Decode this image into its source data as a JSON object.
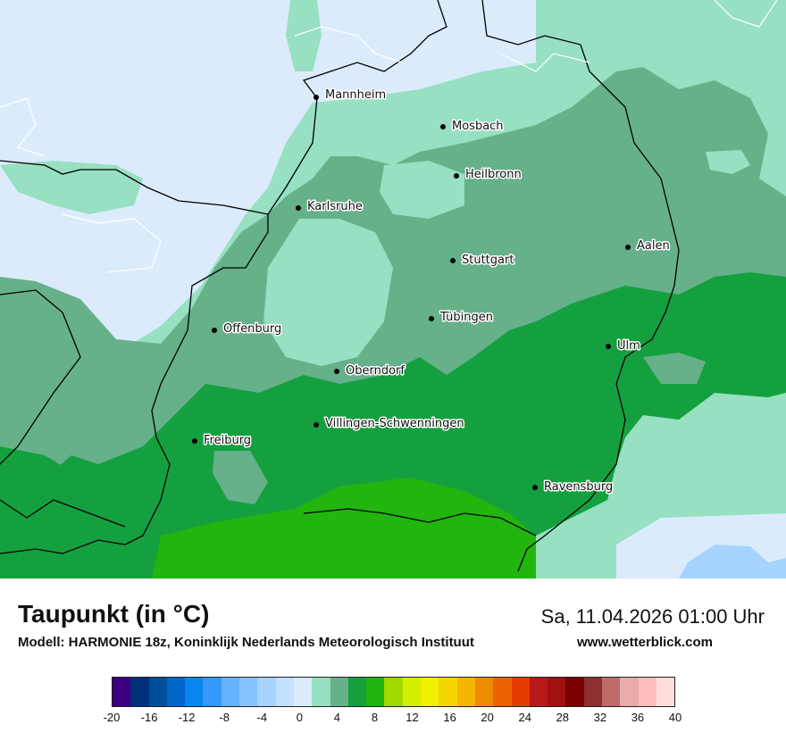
{
  "map": {
    "cities": [
      {
        "name": "Mannheim"
      },
      {
        "name": "Mosbach"
      },
      {
        "name": "Heilbronn"
      },
      {
        "name": "Karlsruhe"
      },
      {
        "name": "Aalen"
      },
      {
        "name": "Stuttgart"
      },
      {
        "name": "Tübingen"
      },
      {
        "name": "Offenburg"
      },
      {
        "name": "Ulm"
      },
      {
        "name": "Oberndorf"
      },
      {
        "name": "Villingen-Schwenningen"
      },
      {
        "name": "Freiburg"
      },
      {
        "name": "Ravensburg"
      }
    ]
  },
  "footer": {
    "title": "Taupunkt (in °C)",
    "subtitle": "Modell: HARMONIE 18z, Koninklijk Nederlands Meteorologisch Instituut",
    "datetime": "Sa, 11.04.2026 01:00 Uhr",
    "website": "www.wetterblick.com"
  },
  "legend": {
    "colors": [
      "#3b007f",
      "#00307a",
      "#004d99",
      "#0066cc",
      "#0a85ee",
      "#3399ff",
      "#66b2ff",
      "#85c2ff",
      "#a6d3ff",
      "#c4e0ff",
      "#dcebfc",
      "#97e0c1",
      "#66b08a",
      "#15a040",
      "#21b50d",
      "#a0d800",
      "#d4ee00",
      "#f0f000",
      "#f5d500",
      "#f3b600",
      "#f08a00",
      "#ed6200",
      "#e63b00",
      "#b71919",
      "#a10f0f",
      "#7a0000",
      "#8c3030",
      "#c06b6b",
      "#e8aaaa",
      "#ffbcbc",
      "#ffdddd"
    ],
    "ticks": [
      "-20",
      "-16",
      "-12",
      "-8",
      "-4",
      "0",
      "4",
      "8",
      "12",
      "16",
      "20",
      "24",
      "28",
      "32",
      "36",
      "40"
    ]
  }
}
